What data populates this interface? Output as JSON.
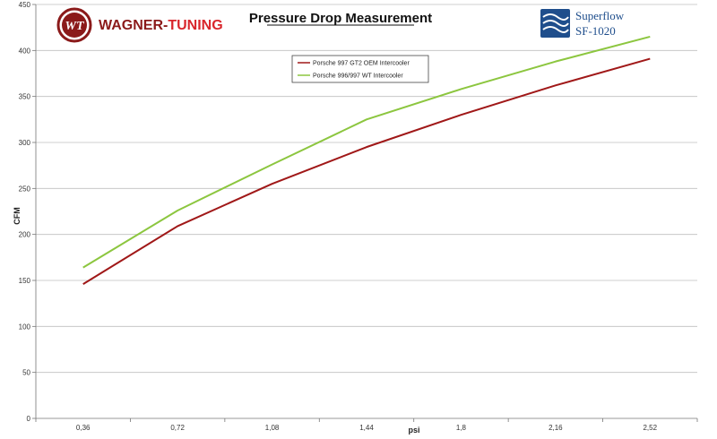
{
  "brand": {
    "name_part1": "WAGNER-",
    "name_part2": "TUNING",
    "logo_letters": "WT",
    "color_dark": "#8b1a1a",
    "color_red": "#d9262c"
  },
  "superflow": {
    "line1": "Superflow",
    "line2": "SF-1020",
    "color": "#1f4e8c"
  },
  "chart_data": {
    "type": "line",
    "title": "Pressure Drop Measurement",
    "xlabel": "psi",
    "ylabel": "CFM",
    "categories": [
      "0,36",
      "0,72",
      "1,08",
      "1,44",
      "1,8",
      "2,16",
      "2,52"
    ],
    "ylim": [
      0,
      450
    ],
    "yticks": [
      0,
      50,
      100,
      150,
      200,
      250,
      300,
      350,
      400,
      450
    ],
    "grid": true,
    "legend": "top-center",
    "series": [
      {
        "name": "Porsche 997 GT2 OEM Intercooler",
        "color": "#a01818",
        "values": [
          146,
          209,
          255,
          295,
          330,
          362,
          391
        ]
      },
      {
        "name": "Porsche 996/997 WT Intercooler",
        "color": "#8cc63f",
        "values": [
          164,
          226,
          276,
          325,
          358,
          388,
          415
        ]
      }
    ]
  }
}
